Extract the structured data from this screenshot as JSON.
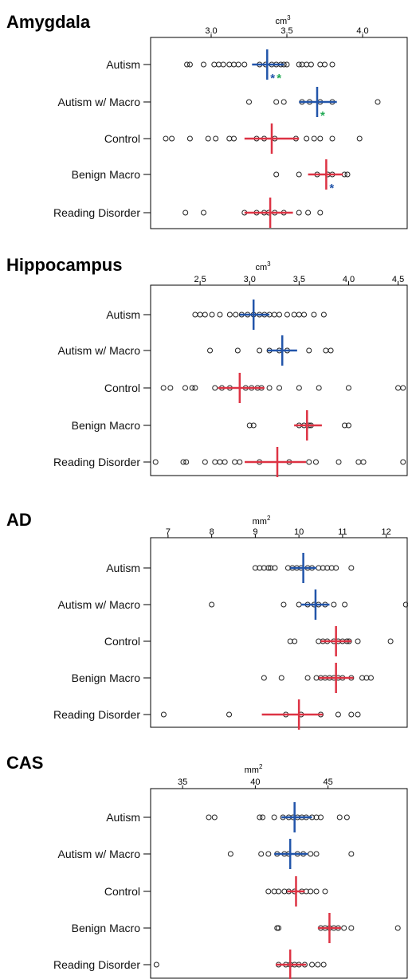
{
  "chart_data": [
    {
      "type": "scatter",
      "title": "Amygdala",
      "unit": "cm",
      "unit_sup": "3",
      "xlim": [
        2.6,
        4.3
      ],
      "ticks": [
        "3.0",
        "3.5",
        "4.0"
      ],
      "tick_values": [
        3.0,
        3.5,
        4.0
      ],
      "categories": [
        "Autism",
        "Autism w/ Macro",
        "Control",
        "Benign Macro",
        "Reading Disorder"
      ],
      "series": [
        {
          "points": [
            2.84,
            2.86,
            2.95,
            3.02,
            3.05,
            3.08,
            3.12,
            3.15,
            3.18,
            3.22,
            3.32,
            3.36,
            3.4,
            3.43,
            3.46,
            3.48,
            3.5,
            3.58,
            3.6,
            3.63,
            3.66,
            3.72,
            3.75,
            3.8
          ],
          "mean": 3.37,
          "ci": [
            3.27,
            3.48
          ],
          "color": "#2255aa",
          "markers": [
            {
              "text": "*",
              "color": "#2255aa"
            },
            {
              "text": "*",
              "color": "#22aa55"
            }
          ]
        },
        {
          "points": [
            3.25,
            3.43,
            3.48,
            3.6,
            3.65,
            3.72,
            3.8,
            4.1,
            4.45
          ],
          "mean": 3.7,
          "ci": [
            3.58,
            3.83
          ],
          "color": "#2255aa",
          "markers": [
            {
              "text": "*",
              "color": "#22aa55"
            }
          ]
        },
        {
          "points": [
            2.7,
            2.74,
            2.86,
            2.98,
            3.03,
            3.12,
            3.15,
            3.3,
            3.35,
            3.42,
            3.56,
            3.63,
            3.68,
            3.72,
            3.8,
            3.98
          ],
          "mean": 3.4,
          "ci": [
            3.22,
            3.58
          ],
          "color": "#dd3344",
          "markers": []
        },
        {
          "points": [
            3.43,
            3.58,
            3.7,
            3.77,
            3.8,
            3.88,
            3.9
          ],
          "mean": 3.76,
          "ci": [
            3.64,
            3.87
          ],
          "color": "#dd3344",
          "markers": [
            {
              "text": "*",
              "color": "#2255aa"
            }
          ]
        },
        {
          "points": [
            2.83,
            2.95,
            3.22,
            3.3,
            3.35,
            3.38,
            3.42,
            3.48,
            3.58,
            3.64,
            3.72
          ],
          "mean": 3.39,
          "ci": [
            3.22,
            3.54
          ],
          "color": "#dd3344",
          "markers": []
        }
      ]
    },
    {
      "type": "scatter",
      "title": "Hippocampus",
      "unit": "cm",
      "unit_sup": "3",
      "xlim": [
        2.0,
        4.6
      ],
      "ticks": [
        "2.5",
        "3.0",
        "3.5",
        "4.0",
        "4.5"
      ],
      "tick_values": [
        2.5,
        3.0,
        3.5,
        4.0,
        4.5
      ],
      "categories": [
        "Autism",
        "Autism w/ Macro",
        "Control",
        "Benign Macro",
        "Reading Disorder"
      ],
      "series": [
        {
          "points": [
            2.45,
            2.5,
            2.55,
            2.62,
            2.7,
            2.8,
            2.86,
            2.92,
            2.98,
            3.04,
            3.1,
            3.15,
            3.2,
            3.25,
            3.3,
            3.38,
            3.45,
            3.5,
            3.55,
            3.65,
            3.75
          ],
          "mean": 3.04,
          "ci": [
            2.9,
            3.2
          ],
          "color": "#2255aa",
          "markers": []
        },
        {
          "points": [
            2.6,
            2.88,
            3.1,
            3.2,
            3.3,
            3.38,
            3.6,
            3.77,
            3.82
          ],
          "mean": 3.33,
          "ci": [
            3.18,
            3.48
          ],
          "color": "#2255aa",
          "markers": []
        },
        {
          "points": [
            2.13,
            2.2,
            2.35,
            2.42,
            2.45,
            2.65,
            2.72,
            2.8,
            2.96,
            3.02,
            3.08,
            3.12,
            3.2,
            3.3,
            3.5,
            3.7,
            4.0,
            4.5,
            4.55
          ],
          "mean": 2.9,
          "ci": [
            2.68,
            3.15
          ],
          "color": "#dd3344",
          "markers": []
        },
        {
          "points": [
            3.0,
            3.04,
            3.5,
            3.55,
            3.6,
            3.62,
            3.96,
            4.0
          ],
          "mean": 3.58,
          "ci": [
            3.45,
            3.73
          ],
          "color": "#dd3344",
          "markers": []
        },
        {
          "points": [
            2.05,
            2.33,
            2.36,
            2.55,
            2.65,
            2.7,
            2.75,
            2.85,
            2.9,
            3.1,
            3.4,
            3.6,
            3.67,
            3.9,
            4.1,
            4.15,
            4.55
          ],
          "mean": 3.28,
          "ci": [
            2.95,
            3.57
          ],
          "color": "#dd3344",
          "markers": []
        }
      ]
    },
    {
      "type": "scatter",
      "title": "AD",
      "unit": "mm",
      "unit_sup": "2",
      "xlim": [
        6.6,
        12.5
      ],
      "ticks": [
        "7",
        "8",
        "9",
        "10",
        "11",
        "12"
      ],
      "tick_values": [
        7,
        8,
        9,
        10,
        11,
        12
      ],
      "categories": [
        "Autism",
        "Autism w/ Macro",
        "Control",
        "Benign Macro",
        "Reading Disorder"
      ],
      "series": [
        {
          "points": [
            9.0,
            9.1,
            9.2,
            9.3,
            9.35,
            9.45,
            9.75,
            9.85,
            9.95,
            10.05,
            10.2,
            10.3,
            10.45,
            10.55,
            10.65,
            10.75,
            10.85,
            11.2
          ],
          "mean": 10.1,
          "ci": [
            9.8,
            10.4
          ],
          "color": "#2255aa",
          "markers": []
        },
        {
          "points": [
            8.0,
            9.65,
            10.0,
            10.2,
            10.35,
            10.45,
            10.6,
            10.8,
            11.05,
            12.45
          ],
          "mean": 10.38,
          "ci": [
            10.05,
            10.7
          ],
          "color": "#2255aa",
          "markers": []
        },
        {
          "points": [
            9.8,
            9.9,
            10.45,
            10.55,
            10.65,
            10.8,
            10.9,
            11.0,
            11.1,
            11.15,
            11.35,
            12.1
          ],
          "mean": 10.85,
          "ci": [
            10.5,
            11.2
          ],
          "color": "#dd3344",
          "markers": []
        },
        {
          "points": [
            9.2,
            9.6,
            10.2,
            10.4,
            10.5,
            10.6,
            10.7,
            10.8,
            10.9,
            11.0,
            11.2,
            11.45,
            11.55,
            11.65
          ],
          "mean": 10.85,
          "ci": [
            10.45,
            11.25
          ],
          "color": "#dd3344",
          "markers": []
        },
        {
          "points": [
            6.9,
            8.4,
            9.7,
            10.05,
            10.5,
            10.9,
            11.2,
            11.35
          ],
          "mean": 10.0,
          "ci": [
            9.15,
            10.55
          ],
          "color": "#dd3344",
          "markers": []
        }
      ]
    },
    {
      "type": "scatter",
      "title": "CAS",
      "unit": "mm",
      "unit_sup": "2",
      "xlim": [
        32.8,
        50.5
      ],
      "ticks": [
        "35",
        "40",
        "45"
      ],
      "tick_values": [
        35,
        40,
        45
      ],
      "categories": [
        "Autism",
        "Autism w/ Macro",
        "Control",
        "Benign Macro",
        "Reading Disorder"
      ],
      "series": [
        {
          "points": [
            36.8,
            37.2,
            40.3,
            40.5,
            41.3,
            41.9,
            42.3,
            42.6,
            42.9,
            43.2,
            43.5,
            43.9,
            44.2,
            44.5,
            45.8,
            46.3
          ],
          "mean": 42.7,
          "ci": [
            41.8,
            43.9
          ],
          "color": "#2255aa",
          "markers": []
        },
        {
          "points": [
            38.3,
            40.4,
            40.9,
            41.5,
            42.0,
            42.3,
            42.9,
            43.3,
            43.8,
            44.2,
            46.6
          ],
          "mean": 42.4,
          "ci": [
            41.3,
            43.6
          ],
          "color": "#2255aa",
          "markers": []
        },
        {
          "points": [
            40.9,
            41.3,
            41.6,
            42.0,
            42.3,
            42.7,
            43.2,
            43.5,
            43.8,
            44.2,
            44.8
          ],
          "mean": 42.8,
          "ci": [
            42.2,
            43.4
          ],
          "color": "#dd3344",
          "markers": []
        },
        {
          "points": [
            41.5,
            41.6,
            44.5,
            44.8,
            45.1,
            45.4,
            45.7,
            46.1,
            46.6,
            49.8
          ],
          "mean": 45.1,
          "ci": [
            44.3,
            45.9
          ],
          "color": "#dd3344",
          "markers": []
        },
        {
          "points": [
            33.2,
            41.6,
            42.1,
            42.4,
            42.7,
            43.0,
            43.4,
            43.9,
            44.3,
            44.7
          ],
          "mean": 42.4,
          "ci": [
            41.4,
            43.5
          ],
          "color": "#dd3344",
          "markers": []
        }
      ]
    }
  ]
}
